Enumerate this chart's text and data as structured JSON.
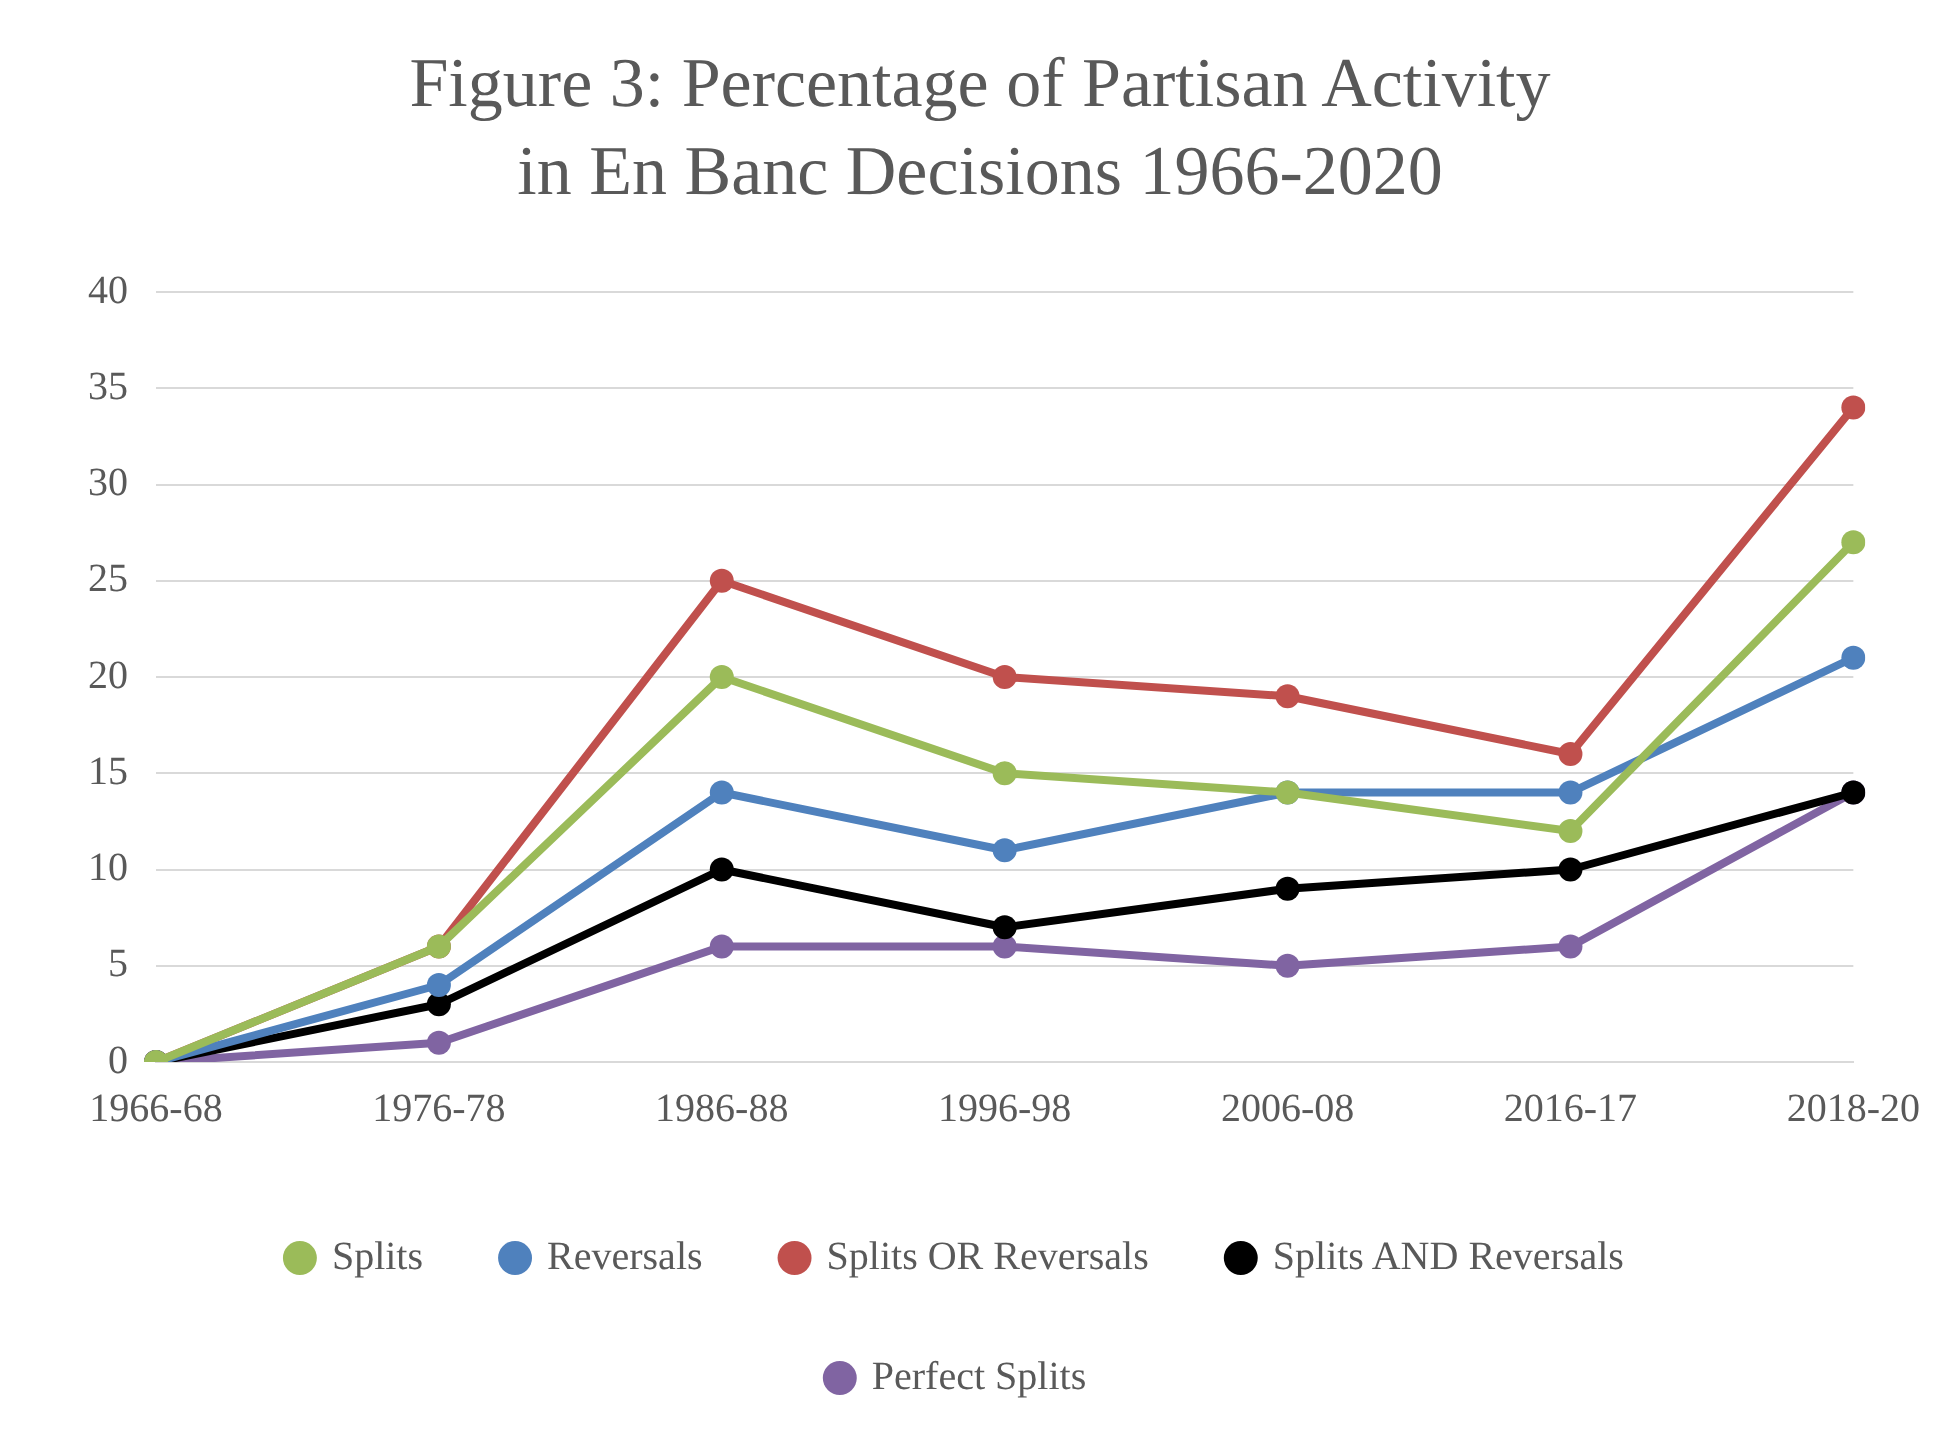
{
  "chart_data": {
    "type": "line",
    "title": "Figure 3: Percentage of Partisan Activity in En Banc Decisions 1966-2020",
    "categories": [
      "1966-68",
      "1976-78",
      "1986-88",
      "1996-98",
      "2006-08",
      "2016-17",
      "2018-20"
    ],
    "series": [
      {
        "name": "Splits",
        "color": "#9bbb59",
        "values": [
          0,
          6,
          20,
          15,
          14,
          12,
          27
        ]
      },
      {
        "name": "Reversals",
        "color": "#4f81bd",
        "values": [
          0,
          4,
          14,
          11,
          14,
          14,
          21
        ]
      },
      {
        "name": "Splits OR Reversals",
        "color": "#c0504d",
        "values": [
          0,
          6,
          25,
          20,
          19,
          16,
          34
        ]
      },
      {
        "name": "Splits AND Reversals",
        "color": "#000000",
        "values": [
          0,
          3,
          10,
          7,
          9,
          10,
          14
        ]
      },
      {
        "name": "Perfect Splits",
        "color": "#8064a2",
        "values": [
          0,
          1,
          6,
          6,
          5,
          6,
          14
        ]
      }
    ],
    "ylim": [
      0,
      40
    ],
    "yticks": [
      0,
      5,
      10,
      15,
      20,
      25,
      30,
      35,
      40
    ],
    "grid": "y",
    "legend": "bottom",
    "marker": "circle",
    "line_style": "solid"
  }
}
